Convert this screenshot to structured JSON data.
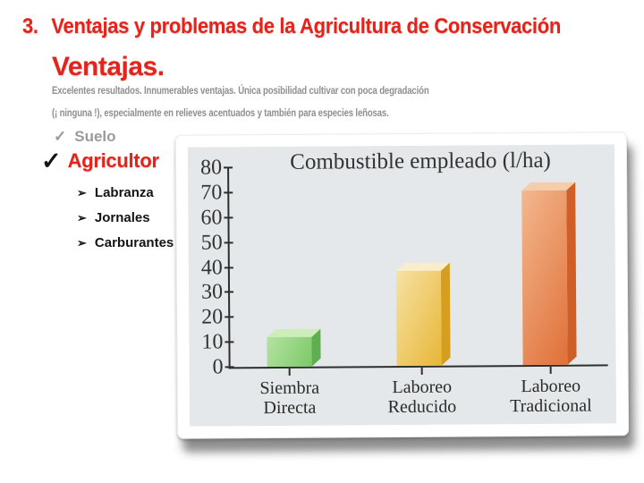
{
  "slide": {
    "title_number": "3.",
    "title_text": "Ventajas y problemas de la Agricultura de Conservación",
    "subtitle_lead": "Ventajas.",
    "subtitle_rest_lines": [
      "Excelentes resultados. Innumerables ventajas. Única posibilidad cultivar con poca degradación",
      "(¡ ninguna !), especialmente en relieves acentuados y también para especies leñosas."
    ],
    "checklist": [
      {
        "bullet": "✓",
        "label": "Suelo"
      },
      {
        "bullet": "✓",
        "label": "Agricultor"
      }
    ],
    "sub_bullets": [
      {
        "bullet": "➢",
        "label": "Labranza"
      },
      {
        "bullet": "➢",
        "label": "Jornales"
      },
      {
        "bullet": "➢",
        "label": "Carburantes"
      }
    ],
    "colors": {
      "accent_red": "#e4231b",
      "muted_gray": "#8f8f8f",
      "text_black": "#141414",
      "chart_bg": "#e4e8ea",
      "axis_color": "#2e2e2e"
    }
  },
  "chart_data": {
    "type": "bar",
    "title": "Combustible empleado (l/ha)",
    "categories": [
      "Siembra Directa",
      "Laboreo Reducido",
      "Laboreo Tradicional"
    ],
    "values": [
      12,
      38,
      70
    ],
    "xlabel": "",
    "ylabel": "",
    "ylim": [
      0,
      80
    ],
    "ytick_step": 10,
    "grid": false,
    "legend": false,
    "bar_style": "3d",
    "bar_colors": [
      {
        "name": "green",
        "front_light": "#b4e3a0",
        "front_dark": "#7cc968",
        "top": "#cdeeba",
        "side": "#5fae4f"
      },
      {
        "name": "gold",
        "front_light": "#f6e2a4",
        "front_dark": "#e8b637",
        "top": "#f8eecb",
        "side": "#d59e1e"
      },
      {
        "name": "orange",
        "front_light": "#f3b78e",
        "front_dark": "#e07038",
        "top": "#f6cdaa",
        "side": "#d05f27"
      }
    ]
  }
}
